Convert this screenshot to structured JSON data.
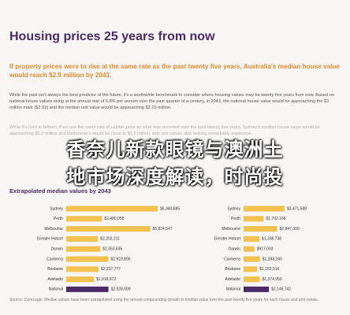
{
  "header": {
    "title": "Housing prices 25 years from now"
  },
  "subtitle": "If property prices were to rise at the same rate as the past twenty five years, Australia's median house value would reach $2.9 million by 2043.",
  "paragraphs": [
    "While the past isn't always the best predictor of the future, it's a worthwhile benchmark to consider where housing values may be twenty five years from now. Based on national house values rising at the annual rate of 6.8% per annum over the past quarter of a century, in 2043, the national house value would be approaching the $3 million mark ($2.93) and the median unit value would be approaching $2.15 million.",
    "While it's hard to fathom, if we use the same rate of capital gains as what was recorded over the past twenty five years, Sydney's median house value would be approaching $6.3 million and Melbourne's would be close to $5.8 million, with unit values also looking remarkably expensive."
  ],
  "overlay": [
    "香奈儿新款眼镜与澳洲土",
    "地市场深度解读，时尚投"
  ],
  "chart_heading": "Extrapolated median values by 2043",
  "chart_data": [
    {
      "type": "bar",
      "orientation": "horizontal",
      "categories": [
        "Sydney",
        "Perth",
        "Melbourne",
        "Greater Hobart",
        "Darwin",
        "Canberra",
        "Brisbane",
        "Adelaide",
        "National"
      ],
      "values": [
        6340885,
        2480058,
        5824547,
        2203211,
        2363635,
        2923896,
        2237777,
        1918972,
        2928009
      ],
      "value_labels": [
        "$6,340,885",
        "$2,480,058",
        "$5,824,547",
        "$2,203,211",
        "$2,363,635",
        "$2,923,896",
        "$2,237,777",
        "$1,918,972",
        "$2,928,009"
      ],
      "colors": [
        "#f2c14e",
        "#f2c14e",
        "#f2c14e",
        "#f2c14e",
        "#f2c14e",
        "#f2c14e",
        "#f2c14e",
        "#f2c14e",
        "#4b2a68"
      ]
    },
    {
      "type": "bar",
      "orientation": "horizontal",
      "categories": [
        "Sydney",
        "Perth",
        "Melbourne",
        "Greater Hobart",
        "Darwin",
        "Canberra",
        "Brisbane",
        "Adelaide",
        "National"
      ],
      "values": [
        3471588,
        1702168,
        2847300,
        1338738,
        917093,
        1383240,
        1152516,
        1374950,
        2146742
      ],
      "value_labels": [
        "$3,471,588",
        "$1,702,168",
        "$2,847,300",
        "$1,338,738",
        "$917,093",
        "$1,383,240",
        "$1,152,516",
        "$1,374,950",
        "$2,146,742"
      ],
      "colors": [
        "#f2c14e",
        "#f2c14e",
        "#f2c14e",
        "#f2c14e",
        "#f2c14e",
        "#f2c14e",
        "#f2c14e",
        "#f2c14e",
        "#4b2a68"
      ]
    }
  ],
  "footnote": "Source: CoreLogic. Median values have been extrapolated using the annual compounding growth in median value over the past twenty five years for each house and unit values."
}
